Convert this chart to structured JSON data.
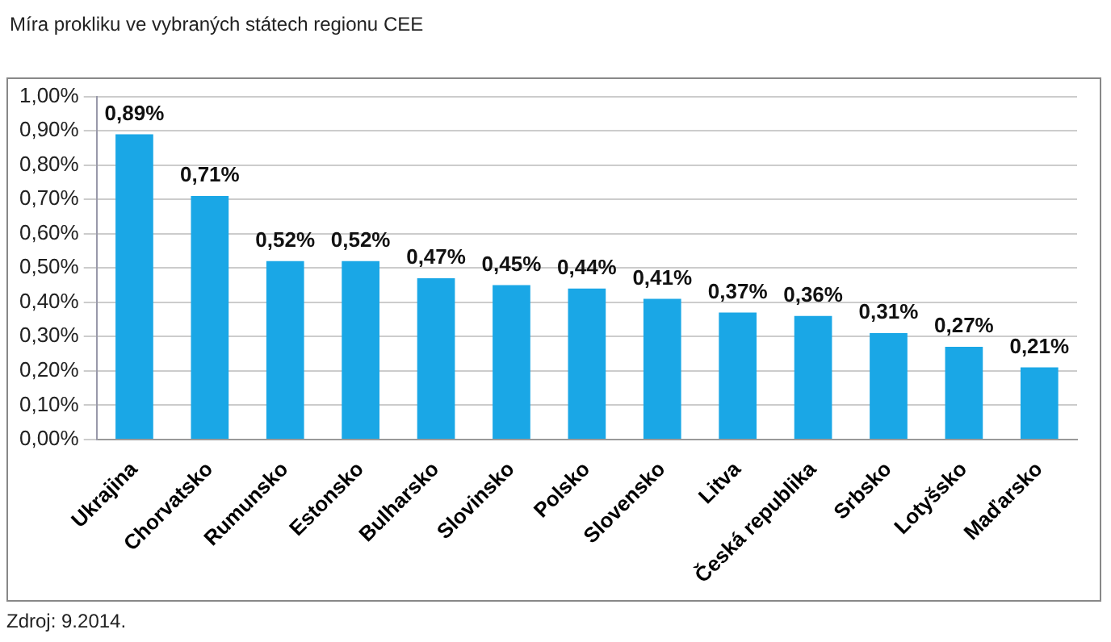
{
  "chart_data": {
    "type": "bar",
    "title": "Míra prokliku ve vybraných státech regionu CEE",
    "categories": [
      "Ukrajina",
      "Chorvatsko",
      "Rumunsko",
      "Estonsko",
      "Bulharsko",
      "Slovinsko",
      "Polsko",
      "Slovensko",
      "Litva",
      "Česká republika",
      "Srbsko",
      "Lotyšsko",
      "Maďarsko"
    ],
    "values": [
      0.89,
      0.71,
      0.52,
      0.52,
      0.47,
      0.45,
      0.44,
      0.41,
      0.37,
      0.36,
      0.31,
      0.27,
      0.21
    ],
    "value_labels": [
      "0,89%",
      "0,71%",
      "0,52%",
      "0,52%",
      "0,47%",
      "0,45%",
      "0,44%",
      "0,41%",
      "0,37%",
      "0,36%",
      "0,31%",
      "0,27%",
      "0,21%"
    ],
    "color": "#1aa7e6",
    "ylim": [
      0,
      1
    ],
    "yticks": [
      {
        "value": 0,
        "label": "0,00%"
      },
      {
        "value": 0.1,
        "label": "0,10%"
      },
      {
        "value": 0.2,
        "label": "0,20%"
      },
      {
        "value": 0.3,
        "label": "0,30%"
      },
      {
        "value": 0.4,
        "label": "0,40%"
      },
      {
        "value": 0.5,
        "label": "0,50%"
      },
      {
        "value": 0.6,
        "label": "0,60%"
      },
      {
        "value": 0.7,
        "label": "0,70%"
      },
      {
        "value": 0.8,
        "label": "0,80%"
      },
      {
        "value": 0.9,
        "label": "0,90%"
      },
      {
        "value": 1,
        "label": "1,00%"
      }
    ],
    "grid": "y",
    "annotations": [
      "Zdroj: 9.2014."
    ]
  }
}
